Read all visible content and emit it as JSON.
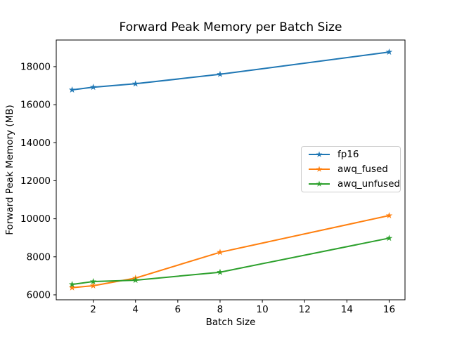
{
  "chart_data": {
    "type": "line",
    "title": "Forward Peak Memory per Batch Size",
    "xlabel": "Batch Size",
    "ylabel": "Forward Peak Memory (MB)",
    "x": [
      1,
      2,
      4,
      8,
      16
    ],
    "series": [
      {
        "name": "fp16",
        "color": "#1f77b4",
        "values": [
          16780,
          16920,
          17100,
          17600,
          18770
        ]
      },
      {
        "name": "awq_fused",
        "color": "#ff7f0e",
        "values": [
          6380,
          6480,
          6880,
          8240,
          10170
        ]
      },
      {
        "name": "awq_unfused",
        "color": "#2ca02c",
        "values": [
          6550,
          6700,
          6770,
          7190,
          8980
        ]
      }
    ],
    "xticks": [
      2,
      4,
      6,
      8,
      10,
      12,
      14,
      16
    ],
    "yticks": [
      6000,
      8000,
      10000,
      12000,
      14000,
      16000,
      18000
    ],
    "xlim": [
      0.25,
      16.75
    ],
    "ylim": [
      5740,
      19400
    ],
    "marker": "star",
    "grid": false,
    "legend_position": "center-right",
    "background": "#ffffff",
    "text_color": "#000000"
  }
}
